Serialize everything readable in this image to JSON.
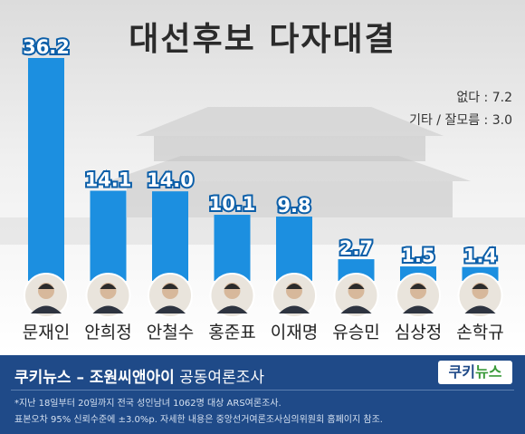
{
  "title": "대선후보 다자대결",
  "others": [
    {
      "label": "없다",
      "value": "7.2"
    },
    {
      "label": "기타 / 잘모름",
      "value": "3.0"
    }
  ],
  "chart_data": {
    "type": "bar",
    "title": "대선후보 다자대결",
    "categories": [
      "문재인",
      "안희정",
      "안철수",
      "홍준표",
      "이재명",
      "유승민",
      "심상정",
      "손학규"
    ],
    "values": [
      36.2,
      14.1,
      14.0,
      10.1,
      9.8,
      2.7,
      1.5,
      1.4
    ],
    "labels": [
      "36.2",
      "14.1",
      "14.0",
      "10.1",
      "9.8",
      "2.7",
      "1.5",
      "1.4"
    ],
    "bar_color": "#1c8fe0"
  },
  "footer": {
    "brand": "쿠키뉴스 – 조원씨앤아이",
    "rest": " 공동여론조사",
    "logo_main": "쿠키",
    "logo_accent": "뉴스",
    "note1": "*지난 18일부터 20일까지 전국 성인남녀 1062명 대상 ARS여론조사.",
    "note2": "표본오차 95% 신뢰수준에 ±3.0%p. 자세한 내용은 중앙선거여론조사심의위원회 홈페이지 참조."
  },
  "colors": {
    "bar": "#1c8fe0",
    "footer_bg": "#1f4a88",
    "title": "#2b2b2b"
  }
}
